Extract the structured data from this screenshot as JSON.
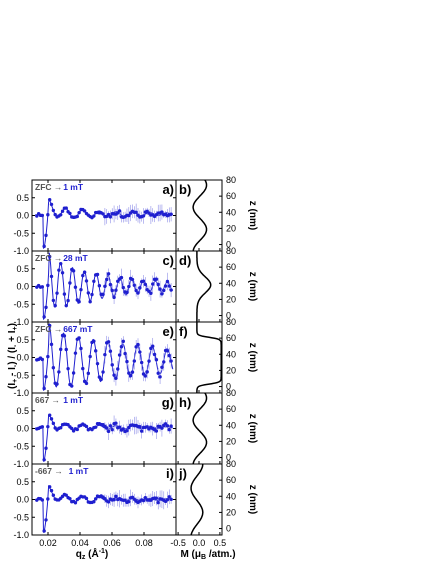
{
  "chart_data": {
    "type": "scatter",
    "colors": {
      "data": "#1f1fcf",
      "fit": "#1f1fcf",
      "profile": "#000000",
      "arrow_text": "#555555"
    },
    "x_axis": {
      "label": "q_z (Å^-1)",
      "ticks": [
        0.02,
        0.04,
        0.06,
        0.08
      ],
      "range": [
        0.01,
        0.1
      ]
    },
    "y_axis": {
      "label": "(I+ - I-) / (I- + I+)",
      "ticks": [
        -1.0,
        -0.5,
        0.0,
        0.5
      ],
      "range": [
        -1.0,
        1.0
      ]
    },
    "profile_x_axis": {
      "label": "M (μB /atm.)",
      "ticks": [
        -0.5,
        0.0,
        0.5
      ],
      "range": [
        -0.55,
        0.55
      ]
    },
    "profile_z_axis": {
      "label": "z (nm)",
      "ticks": [
        0,
        20,
        40,
        60,
        80
      ],
      "range": [
        -8,
        80
      ]
    },
    "panels": [
      {
        "letter": "a)",
        "profile_letter": "b)",
        "from": "ZFC",
        "to": "1 mT",
        "amp": 0.18,
        "k": 95,
        "decay": 22,
        "offset": 0.04,
        "profile": "wave"
      },
      {
        "letter": "c)",
        "profile_letter": "d)",
        "from": "ZFC",
        "to": "28 mT",
        "amp": 0.75,
        "k": 135,
        "decay": 24,
        "offset": 0.0,
        "profile": "bump"
      },
      {
        "letter": "e)",
        "profile_letter": "f)",
        "from": "ZFC",
        "to": "667 mT",
        "amp": 0.85,
        "k": 108,
        "decay": 12,
        "offset": -0.1,
        "profile": "box"
      },
      {
        "letter": "g)",
        "profile_letter": "h)",
        "from": "667",
        "to": "1 mT",
        "amp": 0.12,
        "k": 95,
        "decay": 22,
        "offset": 0.03,
        "profile": "wave"
      },
      {
        "letter": "i)",
        "profile_letter": "j)",
        "from": "-667",
        "to": "1 mT",
        "amp": 0.12,
        "k": 95,
        "decay": 22,
        "offset": 0.0,
        "profile": "wave2"
      }
    ]
  },
  "labels": {
    "xlabel": "qz (Å⁻¹)",
    "ylabel": "(I+ - I-) / (I- + I+)",
    "mlabel": "M (μB /atm.)",
    "zlabel": "z (nm)"
  }
}
